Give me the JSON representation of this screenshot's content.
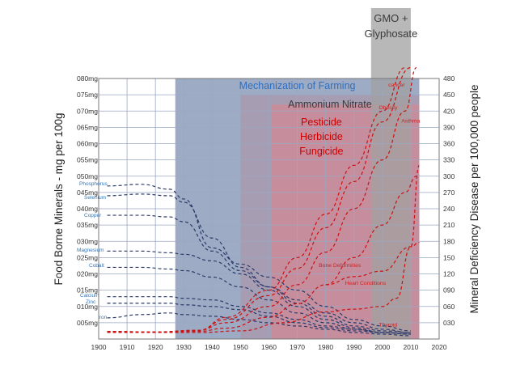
{
  "chart_data": {
    "type": "line",
    "xlim": [
      1900,
      2020
    ],
    "x_ticks": [
      "1900",
      "1910",
      "1920",
      "1930",
      "1940",
      "1950",
      "1960",
      "1970",
      "1980",
      "1990",
      "2000",
      "2010",
      "2020"
    ],
    "y_left": {
      "label": "Food Borne Minerals  - mg per 100g",
      "lim": [
        0,
        80
      ],
      "ticks": [
        "005mg",
        "010mg",
        "015mg",
        "020mg",
        "025mg",
        "030mg",
        "035mg",
        "040mg",
        "045mg",
        "050mg",
        "055mg",
        "060mg",
        "065mg",
        "070mg",
        "075mg",
        "080mg"
      ]
    },
    "y_right": {
      "label": "Mineral Deficiency Disease per 100,000 people",
      "lim": [
        0,
        480
      ],
      "ticks": [
        "030",
        "060",
        "090",
        "120",
        "150",
        "180",
        "210",
        "240",
        "270",
        "300",
        "330",
        "360",
        "390",
        "420",
        "450",
        "480"
      ]
    },
    "bands": [
      {
        "label": "Mechanization of Farming",
        "x": [
          1927,
          2013
        ],
        "y_top": 80,
        "fill": "#7d8fb0",
        "text_color": "#2f6fc0"
      },
      {
        "label": "Ammonium Nitrate",
        "x": [
          1950,
          2013
        ],
        "y_top": 75,
        "fill": "#aa98ae",
        "text_color": "#3a3a3a"
      },
      {
        "label_lines": [
          "Pesticide",
          "Herbicide",
          "Fungicide"
        ],
        "x": [
          1961,
          2013
        ],
        "y_top": 72,
        "fill": "#d08a95",
        "text_color": "#cc0000"
      },
      {
        "label_lines": [
          "GMO +",
          "Glyphosate"
        ],
        "x": [
          1996,
          2010
        ],
        "y_top": 97,
        "fill": "#a0a0a0",
        "text_color": "#3a3a3a"
      }
    ],
    "series_minerals": [
      {
        "name": "Phosphorus",
        "points": [
          [
            1903,
            47
          ],
          [
            1915,
            47.5
          ],
          [
            1925,
            46
          ],
          [
            1930,
            43
          ],
          [
            1940,
            28
          ],
          [
            1950,
            23
          ],
          [
            1960,
            19
          ],
          [
            1970,
            15
          ],
          [
            1980,
            10
          ],
          [
            1990,
            6
          ],
          [
            2000,
            4
          ],
          [
            2010,
            2.5
          ]
        ]
      },
      {
        "name": "Selenium",
        "points": [
          [
            1903,
            44
          ],
          [
            1915,
            44.5
          ],
          [
            1925,
            44
          ],
          [
            1930,
            42
          ],
          [
            1940,
            31
          ],
          [
            1950,
            22
          ],
          [
            1960,
            16
          ],
          [
            1970,
            12
          ],
          [
            1980,
            8
          ],
          [
            1990,
            5
          ],
          [
            2000,
            3
          ],
          [
            2010,
            2
          ]
        ]
      },
      {
        "name": "Copper",
        "points": [
          [
            1903,
            38
          ],
          [
            1915,
            38
          ],
          [
            1925,
            37.5
          ],
          [
            1930,
            36
          ],
          [
            1940,
            27
          ],
          [
            1950,
            21
          ],
          [
            1960,
            16
          ],
          [
            1970,
            11
          ],
          [
            1980,
            7
          ],
          [
            1990,
            4
          ],
          [
            2000,
            2.5
          ],
          [
            2010,
            2
          ]
        ]
      },
      {
        "name": "Magnesium",
        "points": [
          [
            1903,
            27
          ],
          [
            1915,
            27
          ],
          [
            1925,
            26.5
          ],
          [
            1930,
            26
          ],
          [
            1940,
            24
          ],
          [
            1950,
            20
          ],
          [
            1960,
            15
          ],
          [
            1970,
            10
          ],
          [
            1980,
            6
          ],
          [
            1990,
            3.5
          ],
          [
            2000,
            2
          ],
          [
            2010,
            1.5
          ]
        ]
      },
      {
        "name": "Cobalt",
        "points": [
          [
            1903,
            22
          ],
          [
            1915,
            22
          ],
          [
            1925,
            21.5
          ],
          [
            1930,
            21
          ],
          [
            1940,
            19
          ],
          [
            1950,
            16
          ],
          [
            1960,
            12
          ],
          [
            1970,
            8
          ],
          [
            1980,
            5
          ],
          [
            1990,
            3
          ],
          [
            2000,
            2
          ],
          [
            2010,
            1.5
          ]
        ]
      },
      {
        "name": "Calcium",
        "points": [
          [
            1903,
            13
          ],
          [
            1915,
            13
          ],
          [
            1925,
            13
          ],
          [
            1930,
            12.5
          ],
          [
            1940,
            12
          ],
          [
            1950,
            10
          ],
          [
            1960,
            8
          ],
          [
            1970,
            6
          ],
          [
            1980,
            4
          ],
          [
            1990,
            3
          ],
          [
            2000,
            2
          ],
          [
            2010,
            1.5
          ]
        ]
      },
      {
        "name": "Zinc",
        "points": [
          [
            1903,
            11
          ],
          [
            1915,
            11
          ],
          [
            1925,
            11
          ],
          [
            1930,
            10.5
          ],
          [
            1940,
            10
          ],
          [
            1950,
            9
          ],
          [
            1960,
            7
          ],
          [
            1970,
            5
          ],
          [
            1980,
            3.5
          ],
          [
            1990,
            2.5
          ],
          [
            2000,
            2
          ],
          [
            2010,
            1.5
          ]
        ]
      },
      {
        "name": "Iron",
        "points": [
          [
            1903,
            6.5
          ],
          [
            1915,
            7.5
          ],
          [
            1925,
            8
          ],
          [
            1930,
            7.5
          ],
          [
            1940,
            7
          ],
          [
            1950,
            6
          ],
          [
            1960,
            5
          ],
          [
            1970,
            4
          ],
          [
            1980,
            3
          ],
          [
            1990,
            2
          ],
          [
            2000,
            1.5
          ],
          [
            2010,
            1
          ]
        ]
      }
    ],
    "series_diseases": [
      {
        "name": "cancer",
        "points": [
          [
            1903,
            14
          ],
          [
            1920,
            12
          ],
          [
            1935,
            15
          ],
          [
            1945,
            40
          ],
          [
            1960,
            90
          ],
          [
            1970,
            150
          ],
          [
            1980,
            230
          ],
          [
            1990,
            320
          ],
          [
            2000,
            420
          ],
          [
            2008,
            500
          ]
        ],
        "label_x": 2005,
        "label_y": 465
      },
      {
        "name": "Obesity",
        "points": [
          [
            1903,
            14
          ],
          [
            1920,
            13
          ],
          [
            1935,
            16
          ],
          [
            1945,
            36
          ],
          [
            1960,
            80
          ],
          [
            1970,
            130
          ],
          [
            1980,
            205
          ],
          [
            1990,
            290
          ],
          [
            2000,
            400
          ],
          [
            2010,
            500
          ]
        ],
        "label_x": 2002,
        "label_y": 423
      },
      {
        "name": "Asthma",
        "points": [
          [
            1903,
            14
          ],
          [
            1920,
            13
          ],
          [
            1935,
            16
          ],
          [
            1945,
            30
          ],
          [
            1960,
            60
          ],
          [
            1970,
            100
          ],
          [
            1980,
            160
          ],
          [
            1990,
            240
          ],
          [
            2000,
            330
          ],
          [
            2008,
            420
          ],
          [
            2012,
            500
          ]
        ],
        "label_x": 2010,
        "label_y": 399
      },
      {
        "name": "Bone Deformities",
        "points": [
          [
            1903,
            12
          ],
          [
            1920,
            12
          ],
          [
            1935,
            14
          ],
          [
            1945,
            20
          ],
          [
            1960,
            40
          ],
          [
            1970,
            65
          ],
          [
            1980,
            100
          ],
          [
            1990,
            150
          ],
          [
            2000,
            210
          ],
          [
            2008,
            270
          ],
          [
            2012,
            300
          ]
        ],
        "label_x": 1985,
        "label_y": 133
      },
      {
        "name": "Heart Conditions",
        "points": [
          [
            1980,
            100
          ],
          [
            1990,
            115
          ],
          [
            2000,
            125
          ],
          [
            2010,
            170
          ],
          [
            2013,
            178
          ]
        ],
        "label_x": 1994,
        "label_y": 100
      },
      {
        "name": "Thyroid",
        "points": [
          [
            1903,
            13
          ],
          [
            1920,
            12
          ],
          [
            1935,
            12
          ],
          [
            1950,
            15
          ],
          [
            1965,
            30
          ],
          [
            1980,
            50
          ],
          [
            1990,
            55
          ],
          [
            2000,
            60
          ],
          [
            2005,
            75
          ],
          [
            2010,
            170
          ],
          [
            2013,
            320
          ]
        ],
        "label_x": 2002,
        "label_y": 23
      }
    ]
  }
}
